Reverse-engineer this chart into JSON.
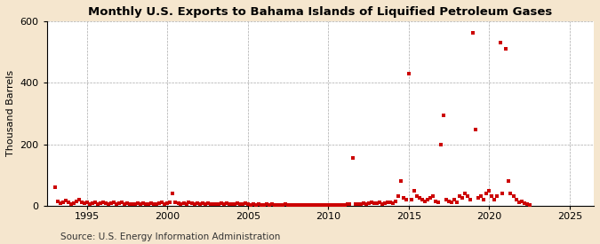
{
  "title": "Monthly U.S. Exports to Bahama Islands of Liquified Petroleum Gases",
  "ylabel": "Thousand Barrels",
  "source": "Source: U.S. Energy Information Administration",
  "xlim": [
    1992.5,
    2026.5
  ],
  "ylim": [
    0,
    600
  ],
  "yticks": [
    0,
    200,
    400,
    600
  ],
  "xticks": [
    1995,
    2000,
    2005,
    2010,
    2015,
    2020,
    2025
  ],
  "fig_background_color": "#f5e6ce",
  "plot_background_color": "#ffffff",
  "grid_color": "#aaaaaa",
  "dot_color": "#cc0000",
  "dot_size": 5,
  "data_points": [
    [
      1993.0,
      60
    ],
    [
      1993.17,
      15
    ],
    [
      1993.33,
      8
    ],
    [
      1993.5,
      12
    ],
    [
      1993.67,
      18
    ],
    [
      1993.83,
      10
    ],
    [
      1994.0,
      5
    ],
    [
      1994.17,
      8
    ],
    [
      1994.33,
      15
    ],
    [
      1994.5,
      20
    ],
    [
      1994.67,
      12
    ],
    [
      1994.83,
      8
    ],
    [
      1995.0,
      10
    ],
    [
      1995.17,
      5
    ],
    [
      1995.33,
      8
    ],
    [
      1995.5,
      12
    ],
    [
      1995.67,
      6
    ],
    [
      1995.83,
      8
    ],
    [
      1996.0,
      10
    ],
    [
      1996.17,
      8
    ],
    [
      1996.33,
      5
    ],
    [
      1996.5,
      7
    ],
    [
      1996.67,
      12
    ],
    [
      1996.83,
      6
    ],
    [
      1997.0,
      8
    ],
    [
      1997.17,
      10
    ],
    [
      1997.33,
      5
    ],
    [
      1997.5,
      8
    ],
    [
      1997.67,
      6
    ],
    [
      1997.83,
      5
    ],
    [
      1998.0,
      6
    ],
    [
      1998.17,
      8
    ],
    [
      1998.33,
      5
    ],
    [
      1998.5,
      8
    ],
    [
      1998.67,
      6
    ],
    [
      1998.83,
      5
    ],
    [
      1999.0,
      8
    ],
    [
      1999.17,
      6
    ],
    [
      1999.33,
      5
    ],
    [
      1999.5,
      8
    ],
    [
      1999.67,
      10
    ],
    [
      1999.83,
      5
    ],
    [
      2000.0,
      8
    ],
    [
      2000.17,
      10
    ],
    [
      2000.33,
      40
    ],
    [
      2000.5,
      12
    ],
    [
      2000.67,
      8
    ],
    [
      2000.83,
      6
    ],
    [
      2001.0,
      8
    ],
    [
      2001.17,
      5
    ],
    [
      2001.33,
      10
    ],
    [
      2001.5,
      8
    ],
    [
      2001.67,
      5
    ],
    [
      2001.83,
      8
    ],
    [
      2002.0,
      6
    ],
    [
      2002.17,
      8
    ],
    [
      2002.33,
      5
    ],
    [
      2002.5,
      8
    ],
    [
      2002.67,
      5
    ],
    [
      2002.83,
      6
    ],
    [
      2003.0,
      5
    ],
    [
      2003.17,
      6
    ],
    [
      2003.33,
      8
    ],
    [
      2003.5,
      5
    ],
    [
      2003.67,
      8
    ],
    [
      2003.83,
      6
    ],
    [
      2004.0,
      5
    ],
    [
      2004.17,
      6
    ],
    [
      2004.33,
      8
    ],
    [
      2004.5,
      5
    ],
    [
      2004.67,
      6
    ],
    [
      2004.83,
      8
    ],
    [
      2005.0,
      5
    ],
    [
      2005.17,
      3
    ],
    [
      2005.33,
      5
    ],
    [
      2005.5,
      3
    ],
    [
      2005.67,
      5
    ],
    [
      2005.83,
      3
    ],
    [
      2006.0,
      3
    ],
    [
      2006.17,
      5
    ],
    [
      2006.33,
      3
    ],
    [
      2006.5,
      5
    ],
    [
      2006.67,
      3
    ],
    [
      2006.83,
      3
    ],
    [
      2007.0,
      3
    ],
    [
      2007.17,
      3
    ],
    [
      2007.33,
      5
    ],
    [
      2007.5,
      3
    ],
    [
      2007.67,
      3
    ],
    [
      2007.83,
      3
    ],
    [
      2008.0,
      3
    ],
    [
      2008.17,
      3
    ],
    [
      2008.33,
      3
    ],
    [
      2008.5,
      3
    ],
    [
      2008.67,
      3
    ],
    [
      2008.83,
      3
    ],
    [
      2009.0,
      3
    ],
    [
      2009.17,
      3
    ],
    [
      2009.33,
      3
    ],
    [
      2009.5,
      3
    ],
    [
      2009.67,
      3
    ],
    [
      2009.83,
      3
    ],
    [
      2010.0,
      3
    ],
    [
      2010.17,
      3
    ],
    [
      2010.33,
      3
    ],
    [
      2010.5,
      3
    ],
    [
      2010.67,
      3
    ],
    [
      2010.83,
      3
    ],
    [
      2011.0,
      3
    ],
    [
      2011.17,
      5
    ],
    [
      2011.33,
      5
    ],
    [
      2011.5,
      155
    ],
    [
      2011.67,
      5
    ],
    [
      2011.83,
      5
    ],
    [
      2012.0,
      5
    ],
    [
      2012.17,
      8
    ],
    [
      2012.33,
      5
    ],
    [
      2012.5,
      8
    ],
    [
      2012.67,
      10
    ],
    [
      2012.83,
      8
    ],
    [
      2013.0,
      8
    ],
    [
      2013.17,
      10
    ],
    [
      2013.33,
      5
    ],
    [
      2013.5,
      8
    ],
    [
      2013.67,
      10
    ],
    [
      2013.83,
      12
    ],
    [
      2014.0,
      8
    ],
    [
      2014.17,
      15
    ],
    [
      2014.33,
      30
    ],
    [
      2014.5,
      80
    ],
    [
      2014.67,
      25
    ],
    [
      2014.83,
      20
    ],
    [
      2015.0,
      430
    ],
    [
      2015.17,
      20
    ],
    [
      2015.33,
      50
    ],
    [
      2015.5,
      30
    ],
    [
      2015.67,
      25
    ],
    [
      2015.83,
      20
    ],
    [
      2016.0,
      15
    ],
    [
      2016.17,
      20
    ],
    [
      2016.33,
      25
    ],
    [
      2016.5,
      30
    ],
    [
      2016.67,
      15
    ],
    [
      2016.83,
      10
    ],
    [
      2017.0,
      200
    ],
    [
      2017.17,
      293
    ],
    [
      2017.33,
      20
    ],
    [
      2017.5,
      15
    ],
    [
      2017.67,
      10
    ],
    [
      2017.83,
      20
    ],
    [
      2018.0,
      10
    ],
    [
      2018.17,
      30
    ],
    [
      2018.33,
      25
    ],
    [
      2018.5,
      40
    ],
    [
      2018.67,
      30
    ],
    [
      2018.83,
      20
    ],
    [
      2019.0,
      563
    ],
    [
      2019.17,
      248
    ],
    [
      2019.33,
      25
    ],
    [
      2019.5,
      30
    ],
    [
      2019.67,
      20
    ],
    [
      2019.83,
      40
    ],
    [
      2020.0,
      50
    ],
    [
      2020.17,
      30
    ],
    [
      2020.33,
      20
    ],
    [
      2020.5,
      30
    ],
    [
      2020.67,
      530
    ],
    [
      2020.83,
      40
    ],
    [
      2021.0,
      510
    ],
    [
      2021.17,
      80
    ],
    [
      2021.33,
      40
    ],
    [
      2021.5,
      30
    ],
    [
      2021.67,
      20
    ],
    [
      2021.83,
      10
    ],
    [
      2022.0,
      15
    ],
    [
      2022.17,
      8
    ],
    [
      2022.33,
      5
    ],
    [
      2022.5,
      3
    ]
  ]
}
